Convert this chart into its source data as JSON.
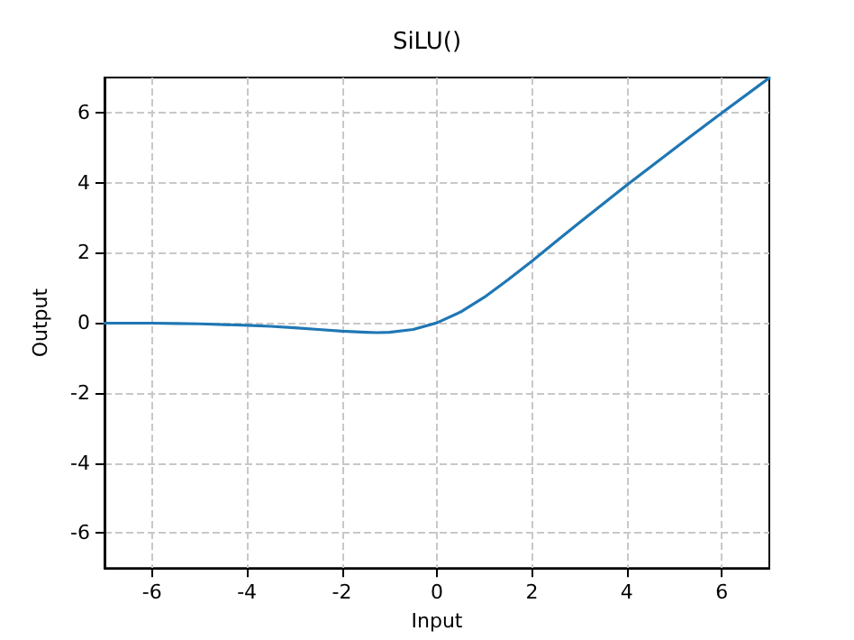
{
  "chart_data": {
    "type": "line",
    "title": "SiLU()",
    "xlabel": "Input",
    "ylabel": "Output",
    "x": [
      -7,
      -6,
      -5.5,
      -5,
      -4,
      -3.5,
      -3,
      -2.5,
      -2,
      -1.5,
      -1.25,
      -1,
      -0.5,
      0,
      0.5,
      1,
      1.5,
      2,
      2.5,
      3,
      4,
      5,
      6,
      7
    ],
    "series": [
      {
        "color": "#1f77b4",
        "values": [
          -0.01,
          -0.01,
          -0.02,
          -0.03,
          -0.07,
          -0.1,
          -0.14,
          -0.19,
          -0.24,
          -0.27,
          -0.28,
          -0.27,
          -0.19,
          0,
          0.31,
          0.73,
          1.23,
          1.76,
          2.31,
          2.86,
          3.93,
          4.97,
          5.99,
          6.99
        ]
      }
    ],
    "xlim": [
      -7,
      7
    ],
    "xticks": [
      -6,
      -4,
      -2,
      0,
      2,
      4,
      6
    ],
    "ylim": [
      -7,
      7
    ],
    "yticks": [
      -6,
      -4,
      -2,
      0,
      2,
      4,
      6
    ],
    "grid": true,
    "marker": "none",
    "line_style": "solid"
  }
}
